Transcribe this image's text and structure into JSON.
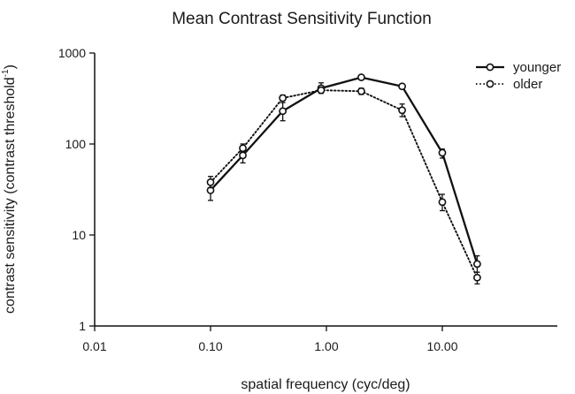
{
  "chart_data": {
    "type": "line",
    "title": "Mean Contrast Sensitivity Function",
    "xlabel": "spatial frequency (cyc/deg)",
    "ylabel_main": "contrast sensitivity (contrast threshold",
    "ylabel_sup": "-1",
    "ylabel_close": ")",
    "x_scale": "log",
    "y_scale": "log",
    "xlim": [
      0.01,
      100
    ],
    "ylim": [
      1,
      1000
    ],
    "x_ticks": [
      {
        "value": 0.01,
        "label": "0.01"
      },
      {
        "value": 0.1,
        "label": "0.10"
      },
      {
        "value": 1,
        "label": "1.00"
      },
      {
        "value": 10,
        "label": "10.00"
      }
    ],
    "y_ticks": [
      {
        "value": 1,
        "label": "1"
      },
      {
        "value": 10,
        "label": "10"
      },
      {
        "value": 100,
        "label": "100"
      },
      {
        "value": 1000,
        "label": "1000"
      }
    ],
    "grid": false,
    "legend_position": "top-right",
    "series": [
      {
        "name": "younger",
        "line_style": "solid",
        "color": "#111111",
        "x": [
          0.1,
          0.19,
          0.42,
          0.9,
          2.0,
          4.5,
          10.0,
          20.0
        ],
        "y": [
          31,
          75,
          230,
          410,
          540,
          430,
          80,
          4.8
        ],
        "err_lo": [
          24,
          62,
          180,
          360,
          510,
          410,
          70,
          3.9
        ],
        "err_hi": [
          39,
          90,
          285,
          470,
          570,
          450,
          88,
          5.9
        ]
      },
      {
        "name": "older",
        "line_style": "dotted",
        "color": "#111111",
        "x": [
          0.1,
          0.19,
          0.42,
          0.9,
          2.0,
          4.5,
          10.0,
          20.0
        ],
        "y": [
          38,
          90,
          320,
          390,
          380,
          235,
          23,
          3.4
        ],
        "err_lo": [
          33,
          82,
          300,
          370,
          350,
          200,
          18.5,
          2.9
        ],
        "err_hi": [
          44,
          100,
          345,
          410,
          410,
          275,
          28,
          3.9
        ]
      }
    ]
  }
}
